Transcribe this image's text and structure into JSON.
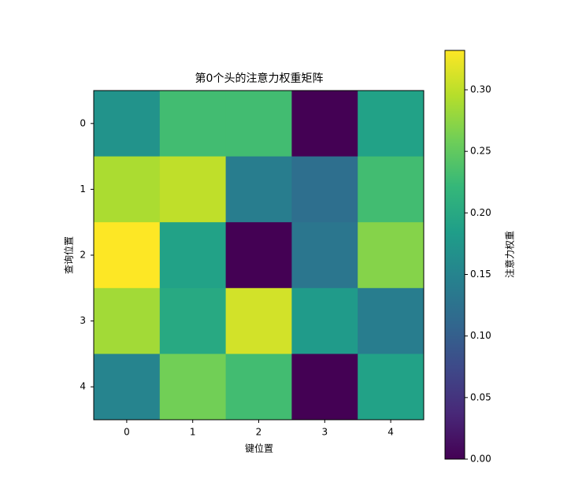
{
  "chart_data": {
    "type": "heatmap",
    "title": "第0个头的注意力权重矩阵",
    "x_label": "键位置",
    "y_label": "查询位置",
    "colorbar_label": "注意力权重",
    "x_categories": [
      "0",
      "1",
      "2",
      "3",
      "4"
    ],
    "y_categories": [
      "0",
      "1",
      "2",
      "3",
      "4"
    ],
    "values": [
      [
        0.17,
        0.23,
        0.23,
        0.0,
        0.19
      ],
      [
        0.29,
        0.3,
        0.14,
        0.12,
        0.23
      ],
      [
        0.332,
        0.19,
        0.0,
        0.13,
        0.27
      ],
      [
        0.285,
        0.2,
        0.31,
        0.18,
        0.14
      ],
      [
        0.15,
        0.26,
        0.23,
        0.0,
        0.19
      ]
    ],
    "clim": [
      0,
      0.332
    ],
    "cticks": [
      {
        "value": 0,
        "label": "0.00"
      },
      {
        "value": 0.05,
        "label": "0.05"
      },
      {
        "value": 0.1,
        "label": "0.10"
      },
      {
        "value": 0.15,
        "label": "0.15"
      },
      {
        "value": 0.2,
        "label": "0.20"
      },
      {
        "value": 0.25,
        "label": "0.25"
      },
      {
        "value": 0.3,
        "label": "0.30"
      }
    ],
    "colormap": [
      "#440154",
      "#482878",
      "#3e4989",
      "#31688e",
      "#26828e",
      "#1f9e89",
      "#35b779",
      "#6ece58",
      "#b5de2b",
      "#fde725"
    ]
  }
}
